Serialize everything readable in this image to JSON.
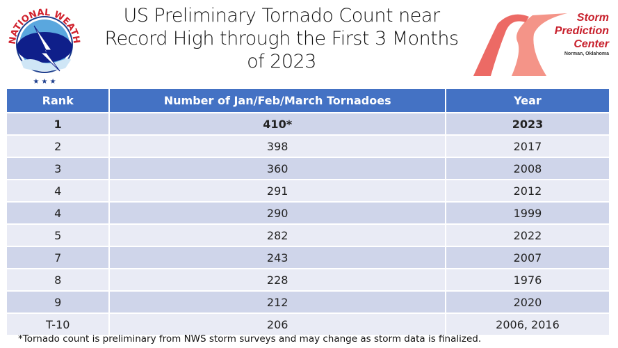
{
  "title": "US Preliminary Tornado Count near Record High through the First 3 Months of 2023",
  "logos": {
    "left": "NATIONAL WEATHER SERVICE",
    "right": {
      "line1": "Storm",
      "line2": "Prediction",
      "line3": "Center",
      "sub": "Norman, Oklahoma"
    }
  },
  "table": {
    "headers": [
      "Rank",
      "Number of Jan/Feb/March Tornadoes",
      "Year"
    ],
    "rows": [
      [
        "1",
        "410*",
        "2023"
      ],
      [
        "2",
        "398",
        "2017"
      ],
      [
        "3",
        "360",
        "2008"
      ],
      [
        "4",
        "291",
        "2012"
      ],
      [
        "4",
        "290",
        "1999"
      ],
      [
        "5",
        "282",
        "2022"
      ],
      [
        "7",
        "243",
        "2007"
      ],
      [
        "8",
        "228",
        "1976"
      ],
      [
        "9",
        "212",
        "2020"
      ],
      [
        "T-10",
        "206",
        "2006, 2016"
      ]
    ]
  },
  "footnote": "*Tornado count is preliminary from NWS storm surveys and may change as storm data is finalized.",
  "colors": {
    "header": "#4472c4",
    "row_dark": "#cfd5ea",
    "row_light": "#e9ebf5",
    "spc_red": "#c8202c"
  }
}
